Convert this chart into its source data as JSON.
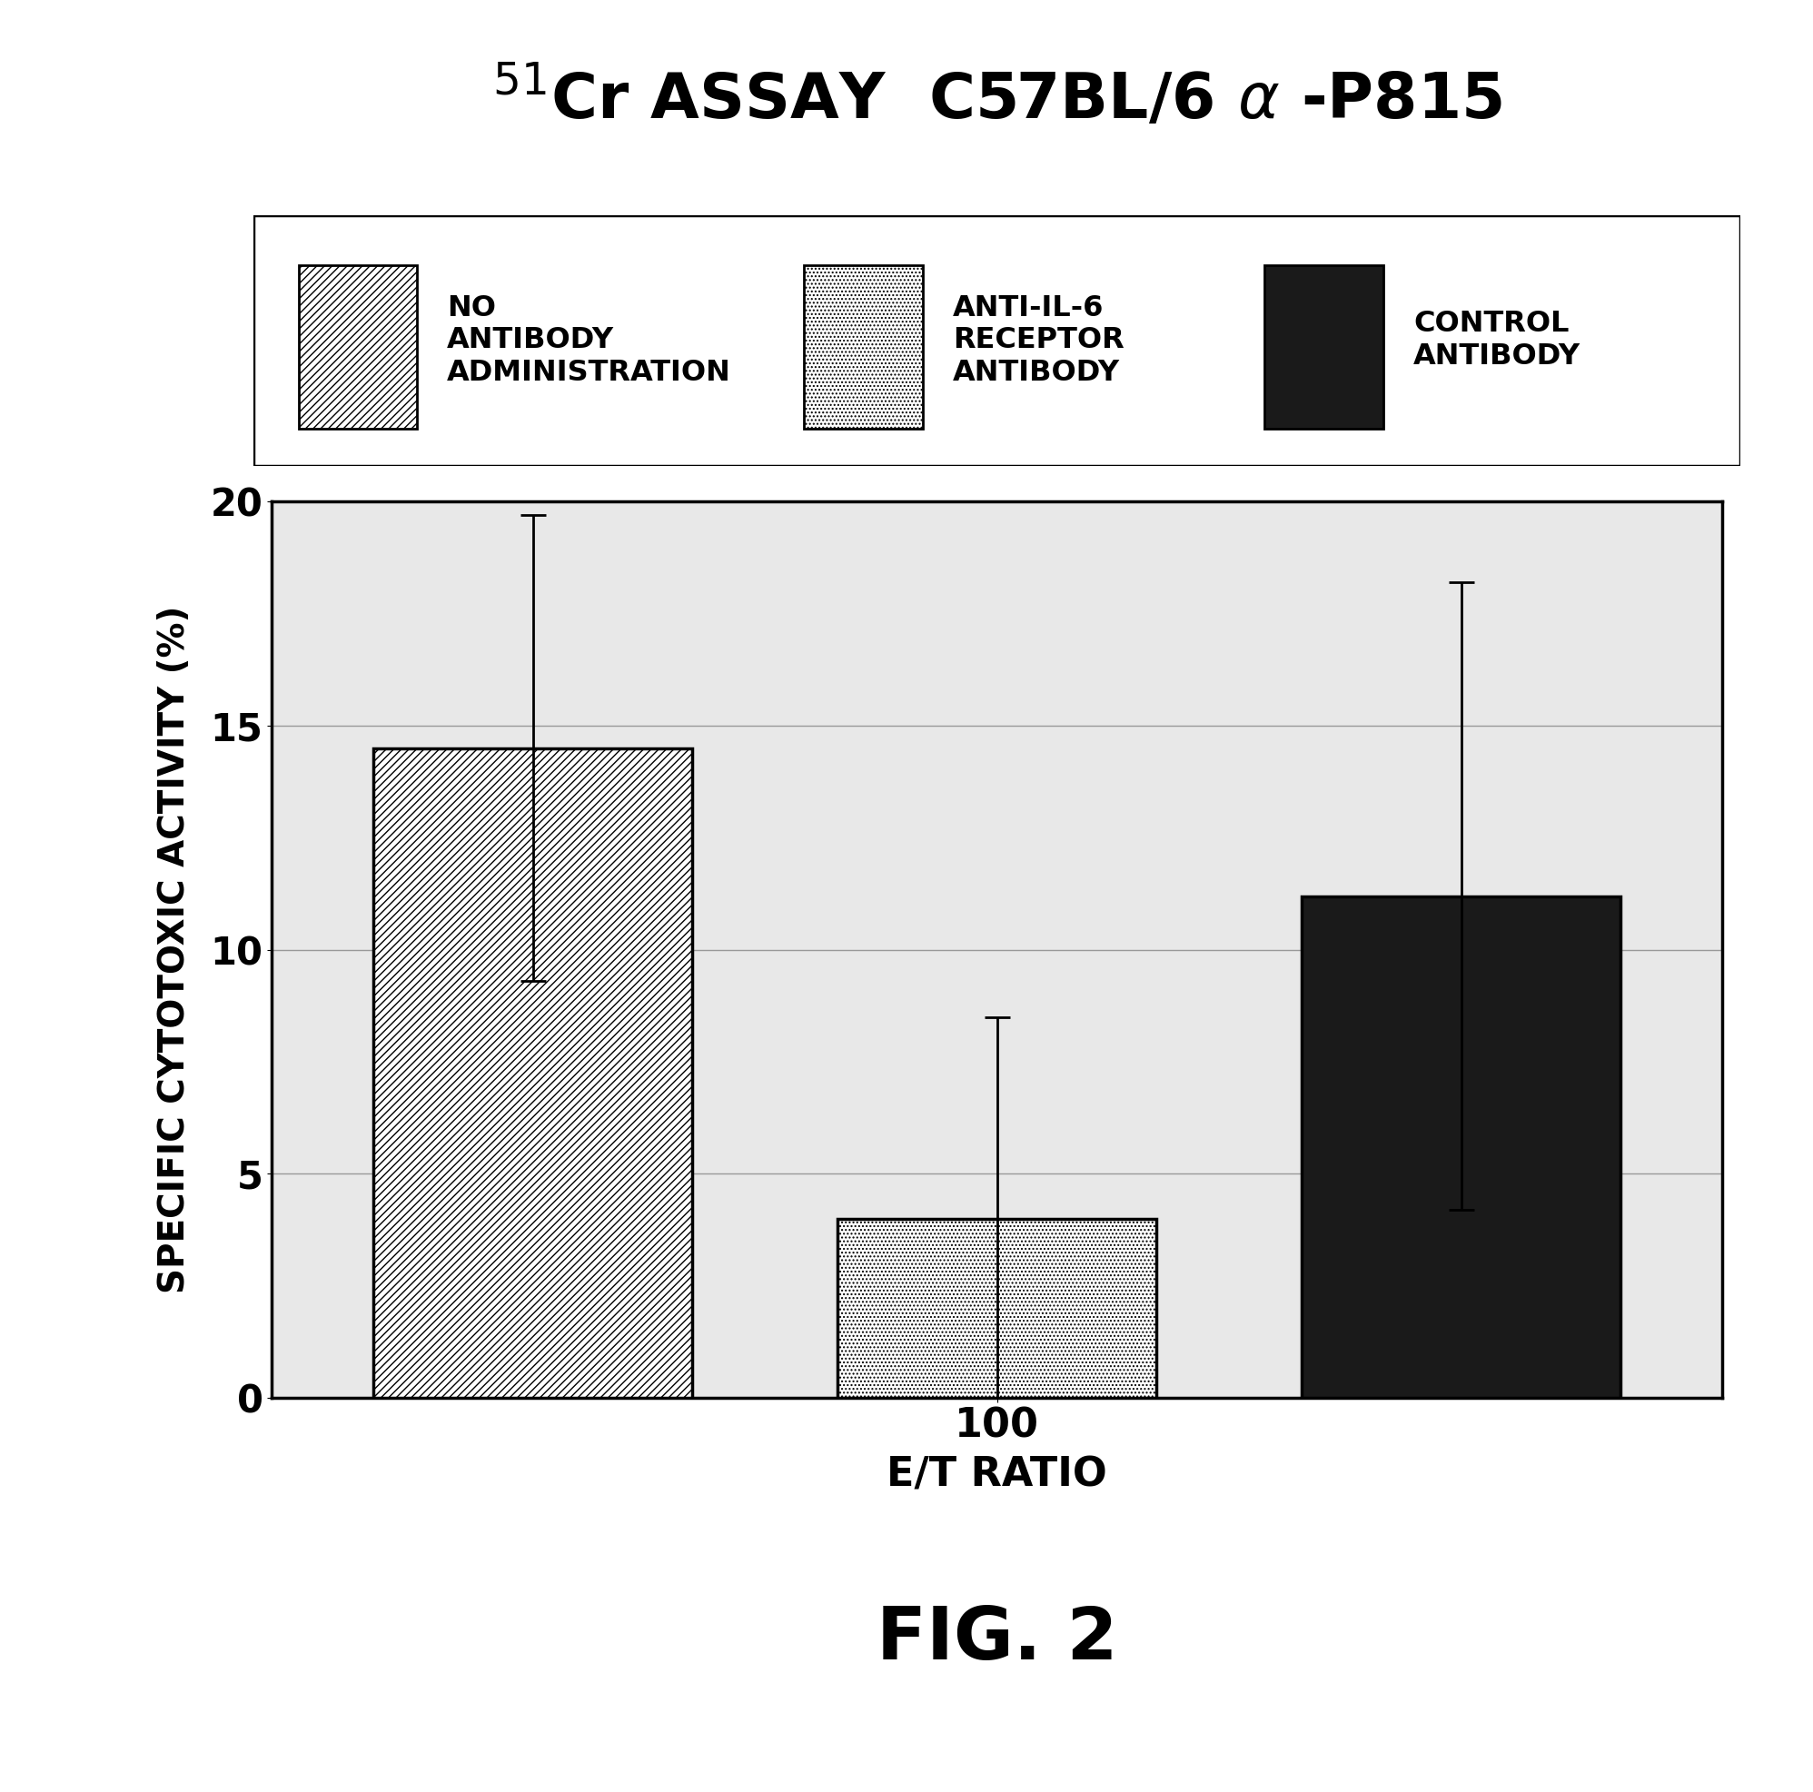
{
  "ylabel": "SPECIFIC CYTOTOXIC ACTIVITY (%)",
  "xlabel": "E/T RATIO",
  "xtick_label": "100",
  "fig_label": "FIG. 2",
  "ylim": [
    0,
    20
  ],
  "yticks": [
    0,
    5,
    10,
    15,
    20
  ],
  "bar_values": [
    14.5,
    4.0,
    11.2
  ],
  "bar_errors": [
    5.2,
    4.5,
    7.0
  ],
  "bar_colors": [
    "white",
    "white",
    "#1a1a1a"
  ],
  "bar_edgecolors": [
    "black",
    "black",
    "black"
  ],
  "bar_patterns": [
    "////",
    "....",
    ""
  ],
  "legend_labels": [
    "NO\nANTIBODY\nADMINISTRATION",
    "ANTI-IL-6\nRECEPTOR\nANTIBODY",
    "CONTROL\nANTIBODY"
  ],
  "legend_patterns": [
    "////",
    "....",
    ""
  ],
  "legend_facecolors": [
    "white",
    "white",
    "#1a1a1a"
  ],
  "bar_width": 0.55,
  "bar_positions": [
    0.8,
    1.6,
    2.4
  ]
}
